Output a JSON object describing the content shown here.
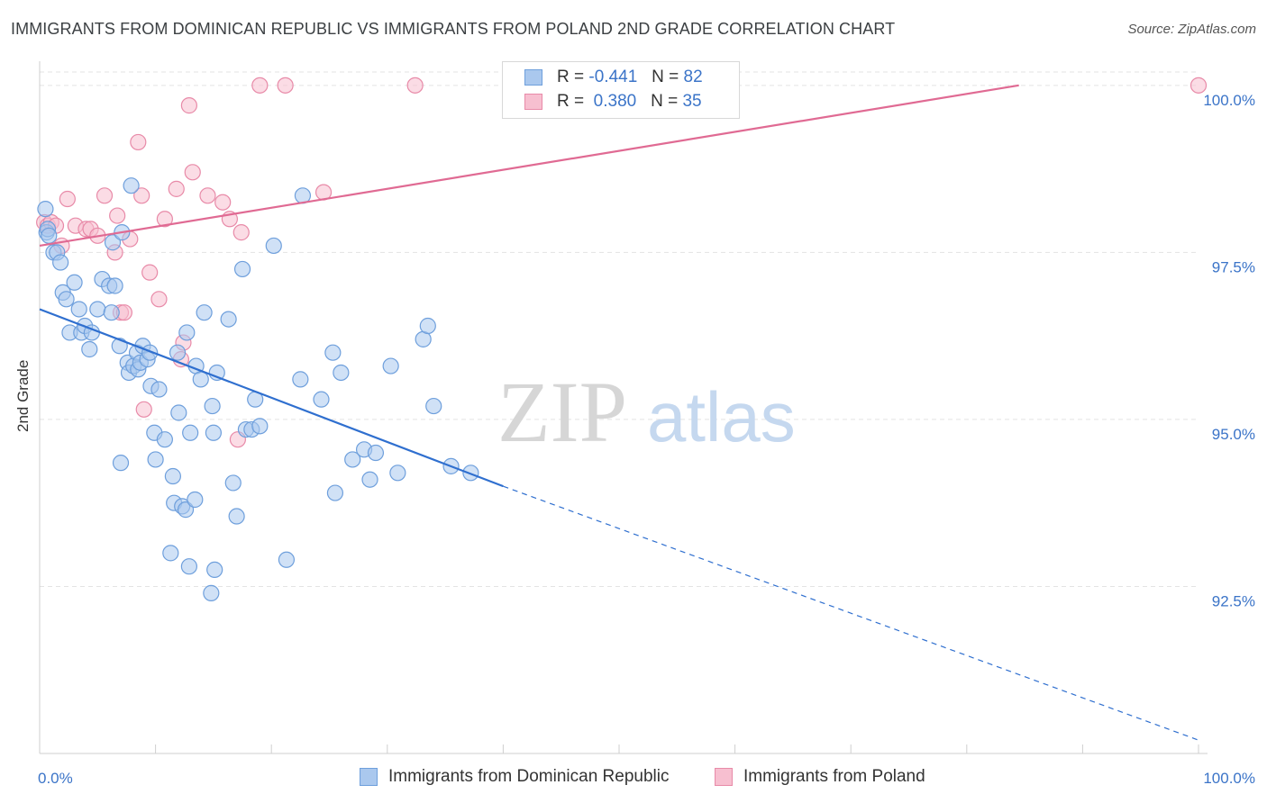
{
  "title": "IMMIGRANTS FROM DOMINICAN REPUBLIC VS IMMIGRANTS FROM POLAND 2ND GRADE CORRELATION CHART",
  "source": "Source: ZipAtlas.com",
  "watermark": {
    "zip": "ZIP",
    "atlas": "atlas"
  },
  "colors": {
    "blue_fill": "#aac8ee",
    "blue_stroke": "#6e9fdc",
    "blue_line": "#2f6fcf",
    "pink_fill": "#f7bfd0",
    "pink_stroke": "#e88aa8",
    "pink_line": "#e06a93",
    "grid": "#e3e3e3",
    "tick_label": "#3b74c8"
  },
  "legend": {
    "series1": {
      "r_label": "R =",
      "r_value": "-0.441",
      "n_label": "N =",
      "n_value": "82"
    },
    "series2": {
      "r_label": "R =",
      "r_value": "0.380",
      "n_label": "N =",
      "n_value": "35"
    }
  },
  "chart_data": {
    "type": "scatter",
    "title": "IMMIGRANTS FROM DOMINICAN REPUBLIC VS IMMIGRANTS FROM POLAND 2ND GRADE CORRELATION CHART",
    "xlabel": "",
    "ylabel": "2nd Grade",
    "xlim": [
      0,
      100
    ],
    "ylim": [
      90.0,
      100.2
    ],
    "x_tick_labels": [
      "0.0%",
      "100.0%"
    ],
    "y_ticks": [
      92.5,
      95.0,
      97.5,
      100.0
    ],
    "y_tick_labels": [
      "92.5%",
      "95.0%",
      "97.5%",
      "100.0%"
    ],
    "series": [
      {
        "name": "Immigrants from Dominican Republic",
        "color": "blue",
        "trend": {
          "x0": 0,
          "y0": 96.65,
          "x1": 40.0,
          "y1": 94.0,
          "dash_to_x": 100,
          "dash_to_y": 90.2
        },
        "points": [
          [
            0.5,
            98.15
          ],
          [
            0.6,
            97.8
          ],
          [
            0.7,
            97.85
          ],
          [
            0.8,
            97.75
          ],
          [
            1.2,
            97.5
          ],
          [
            1.5,
            97.5
          ],
          [
            1.8,
            97.35
          ],
          [
            2.0,
            96.9
          ],
          [
            2.3,
            96.8
          ],
          [
            2.6,
            96.3
          ],
          [
            3.0,
            97.05
          ],
          [
            3.4,
            96.65
          ],
          [
            3.6,
            96.3
          ],
          [
            3.9,
            96.4
          ],
          [
            4.3,
            96.05
          ],
          [
            4.5,
            96.3
          ],
          [
            5.0,
            96.65
          ],
          [
            5.4,
            97.1
          ],
          [
            6.0,
            97.0
          ],
          [
            6.3,
            97.65
          ],
          [
            6.5,
            97.0
          ],
          [
            6.2,
            96.6
          ],
          [
            6.9,
            96.1
          ],
          [
            7.1,
            97.8
          ],
          [
            7.0,
            94.35
          ],
          [
            7.6,
            95.85
          ],
          [
            7.7,
            95.7
          ],
          [
            7.9,
            98.5
          ],
          [
            8.1,
            95.8
          ],
          [
            8.5,
            95.75
          ],
          [
            8.4,
            96.0
          ],
          [
            8.7,
            95.85
          ],
          [
            8.9,
            96.1
          ],
          [
            9.3,
            95.9
          ],
          [
            9.5,
            96.0
          ],
          [
            9.6,
            95.5
          ],
          [
            9.9,
            94.8
          ],
          [
            10.0,
            94.4
          ],
          [
            10.3,
            95.45
          ],
          [
            10.8,
            94.7
          ],
          [
            11.3,
            93.0
          ],
          [
            11.5,
            94.15
          ],
          [
            11.6,
            93.75
          ],
          [
            11.9,
            96.0
          ],
          [
            12.0,
            95.1
          ],
          [
            12.3,
            93.7
          ],
          [
            12.6,
            93.65
          ],
          [
            12.7,
            96.3
          ],
          [
            13.0,
            94.8
          ],
          [
            12.9,
            92.8
          ],
          [
            13.4,
            93.8
          ],
          [
            13.5,
            95.8
          ],
          [
            13.9,
            95.6
          ],
          [
            14.2,
            96.6
          ],
          [
            14.8,
            92.4
          ],
          [
            14.9,
            95.2
          ],
          [
            15.0,
            94.8
          ],
          [
            15.1,
            92.75
          ],
          [
            15.3,
            95.7
          ],
          [
            16.3,
            96.5
          ],
          [
            16.7,
            94.05
          ],
          [
            17.0,
            93.55
          ],
          [
            17.5,
            97.25
          ],
          [
            18.6,
            95.3
          ],
          [
            17.8,
            94.85
          ],
          [
            18.3,
            94.85
          ],
          [
            19.0,
            94.9
          ],
          [
            20.2,
            97.6
          ],
          [
            21.3,
            92.9
          ],
          [
            22.5,
            95.6
          ],
          [
            22.7,
            98.35
          ],
          [
            24.3,
            95.3
          ],
          [
            25.3,
            96.0
          ],
          [
            25.5,
            93.9
          ],
          [
            26.0,
            95.7
          ],
          [
            27.0,
            94.4
          ],
          [
            28.0,
            94.55
          ],
          [
            28.5,
            94.1
          ],
          [
            29.0,
            94.5
          ],
          [
            30.3,
            95.8
          ],
          [
            30.9,
            94.2
          ],
          [
            33.1,
            96.2
          ],
          [
            33.5,
            96.4
          ],
          [
            34.0,
            95.2
          ],
          [
            35.5,
            94.3
          ],
          [
            37.2,
            94.2
          ]
        ]
      },
      {
        "name": "Immigrants from Poland",
        "color": "pink",
        "trend": {
          "x0": 0,
          "y0": 97.6,
          "x1": 84.5,
          "y1": 100.0
        },
        "points": [
          [
            0.4,
            97.95
          ],
          [
            0.7,
            97.9
          ],
          [
            1.0,
            97.95
          ],
          [
            1.4,
            97.9
          ],
          [
            1.9,
            97.6
          ],
          [
            2.4,
            98.3
          ],
          [
            3.1,
            97.9
          ],
          [
            4.0,
            97.85
          ],
          [
            4.4,
            97.85
          ],
          [
            5.0,
            97.75
          ],
          [
            5.6,
            98.35
          ],
          [
            6.5,
            97.5
          ],
          [
            6.7,
            98.05
          ],
          [
            7.0,
            96.6
          ],
          [
            7.3,
            96.6
          ],
          [
            7.8,
            97.7
          ],
          [
            8.5,
            99.15
          ],
          [
            8.8,
            98.35
          ],
          [
            9.0,
            95.15
          ],
          [
            9.5,
            97.2
          ],
          [
            10.3,
            96.8
          ],
          [
            10.8,
            98.0
          ],
          [
            11.8,
            98.45
          ],
          [
            12.2,
            95.9
          ],
          [
            12.4,
            96.15
          ],
          [
            12.9,
            99.7
          ],
          [
            13.2,
            98.7
          ],
          [
            14.5,
            98.35
          ],
          [
            15.8,
            98.25
          ],
          [
            16.4,
            98.0
          ],
          [
            17.1,
            94.7
          ],
          [
            17.4,
            97.8
          ],
          [
            19.0,
            100.0
          ],
          [
            21.2,
            100.0
          ],
          [
            24.5,
            98.4
          ],
          [
            32.4,
            100.0
          ],
          [
            100.0,
            100.0
          ]
        ]
      }
    ]
  }
}
